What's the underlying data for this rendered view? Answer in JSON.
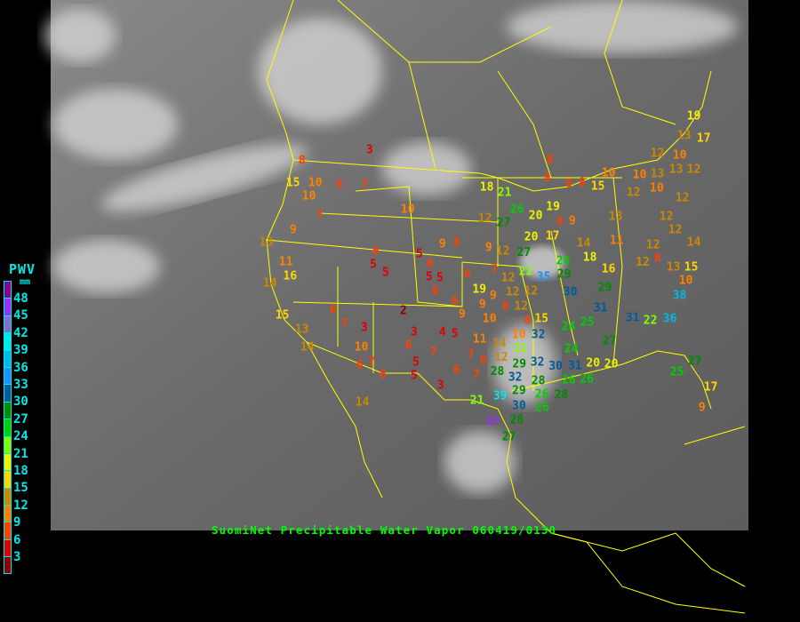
{
  "caption": "SuomiNet Precipitable Water Vapor 060419/0130",
  "legend": {
    "title": "PWV",
    "unit": "mm",
    "labels": [
      "48",
      "45",
      "42",
      "39",
      "36",
      "33",
      "30",
      "27",
      "24",
      "21",
      "18",
      "15",
      "12",
      "9",
      "6",
      "3"
    ],
    "colors": [
      "#8b0090",
      "#9a30ff",
      "#8070d0",
      "#00e8e8",
      "#00b8e8",
      "#1e90ff",
      "#005a9a",
      "#008c00",
      "#00d000",
      "#80ff00",
      "#f0f000",
      "#ffd700",
      "#cc8800",
      "#ff8000",
      "#ff4000",
      "#e00000",
      "#900000"
    ]
  },
  "map": {
    "border_color": "#ffff00",
    "station_values": [
      3,
      8,
      15,
      10,
      10,
      6,
      7,
      7,
      10,
      9,
      13,
      11,
      16,
      14,
      15,
      13,
      14,
      6,
      7,
      3,
      10,
      6,
      7,
      6,
      2,
      3,
      6,
      7,
      4,
      5,
      5,
      5,
      3,
      6,
      7,
      8,
      7,
      6,
      5,
      5,
      5,
      6,
      5,
      5,
      6,
      9,
      8,
      9,
      12,
      6,
      9,
      6,
      7,
      18,
      21,
      26,
      20,
      12,
      27,
      20,
      17,
      27,
      12,
      22,
      35,
      26,
      29,
      30,
      29,
      31,
      24,
      25,
      24,
      27,
      12,
      12,
      12,
      9,
      9,
      8,
      19,
      8,
      10,
      10,
      32,
      21,
      11,
      14,
      12,
      15,
      28,
      29,
      32,
      30,
      31,
      26,
      32,
      29,
      28,
      26,
      20,
      20,
      39,
      30,
      21,
      28,
      47,
      27,
      26,
      28,
      26,
      8,
      8,
      8,
      8,
      15,
      10,
      13,
      14,
      18,
      16,
      11,
      8,
      9,
      10,
      13,
      10,
      12,
      12,
      10,
      13,
      17,
      19,
      13,
      12,
      12,
      12,
      12,
      14,
      12,
      8,
      12,
      13,
      15,
      10,
      38,
      31,
      22,
      36,
      27,
      25,
      17,
      9,
      14,
      19
    ]
  }
}
